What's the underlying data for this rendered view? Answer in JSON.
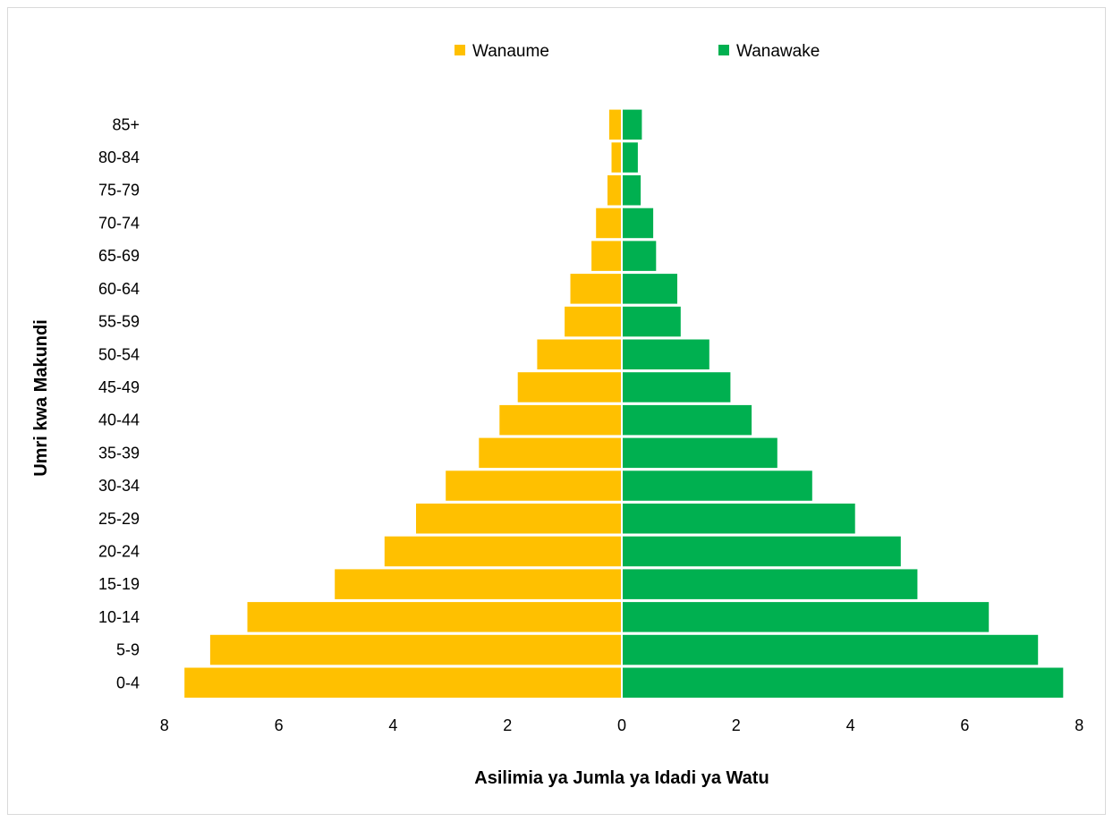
{
  "chart_data": {
    "type": "bar",
    "orientation": "horizontal",
    "layout": "population-pyramid",
    "categories": [
      "0-4",
      "5-9",
      "10-14",
      "15-19",
      "20-24",
      "25-29",
      "30-34",
      "35-39",
      "40-44",
      "45-49",
      "50-54",
      "55-59",
      "60-64",
      "65-69",
      "70-74",
      "75-79",
      "80-84",
      "85+"
    ],
    "series": [
      {
        "name": "Wanaume",
        "color": "#ffc000",
        "side": "left",
        "values": [
          7.65,
          7.2,
          6.55,
          5.02,
          4.15,
          3.6,
          3.08,
          2.5,
          2.14,
          1.82,
          1.48,
          1.0,
          0.9,
          0.53,
          0.45,
          0.25,
          0.18,
          0.22
        ]
      },
      {
        "name": "Wanawake",
        "color": "#00b050",
        "side": "right",
        "values": [
          7.72,
          7.28,
          6.42,
          5.17,
          4.88,
          4.08,
          3.33,
          2.72,
          2.27,
          1.9,
          1.53,
          1.03,
          0.97,
          0.6,
          0.55,
          0.33,
          0.28,
          0.35
        ]
      }
    ],
    "xlabel": "Asilimia ya Jumla ya Idadi ya Watu",
    "ylabel": "Umri kwa Makundi",
    "xticks": [
      "8",
      "6",
      "4",
      "2",
      "0",
      "2",
      "4",
      "6",
      "8"
    ],
    "xlim": [
      -8,
      8
    ],
    "grid": false,
    "legend_position": "top-center"
  }
}
